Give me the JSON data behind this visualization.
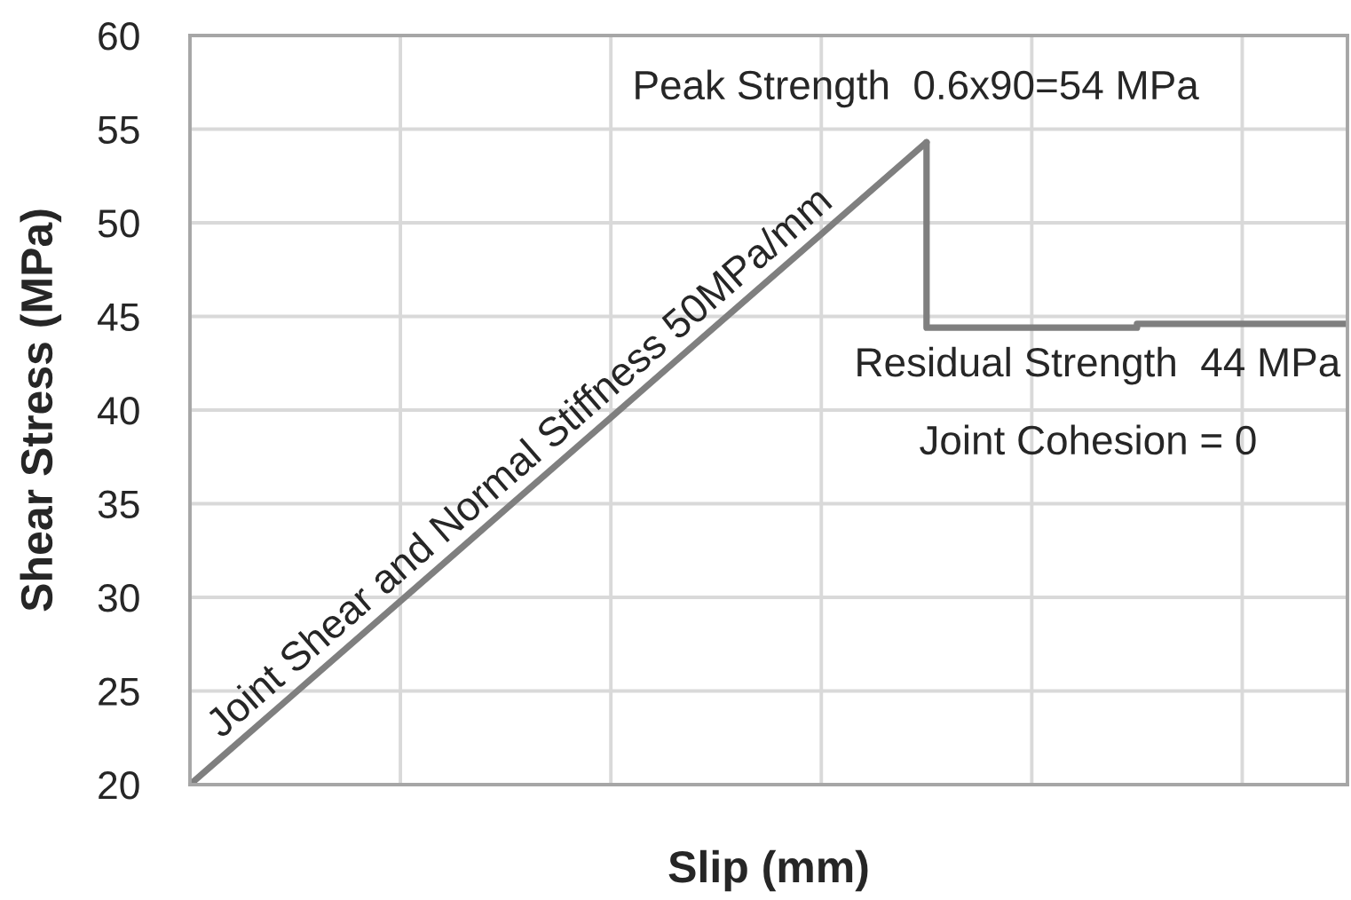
{
  "chart_data": {
    "type": "line",
    "xlabel": "Slip (mm)",
    "ylabel": "Shear Stress (MPa)",
    "categories": [
      null,
      null,
      null,
      null,
      null,
      null,
      null,
      null,
      null,
      null,
      null,
      null
    ],
    "series": [
      {
        "color": "#7f7f7f",
        "values": [
          20,
          24.9,
          29.8,
          34.7,
          39.6,
          44.5,
          49.4,
          54.3,
          null,
          null,
          null,
          null
        ]
      },
      {
        "type": "step",
        "color": "#7f7f7f",
        "values": [
          null,
          null,
          null,
          null,
          null,
          null,
          null,
          54.3,
          44.4,
          44.4,
          44.6,
          44.6
        ]
      }
    ],
    "ylim": [
      20,
      60
    ],
    "yticks": [
      20,
      25,
      30,
      35,
      40,
      45,
      50,
      55,
      60
    ],
    "grid": true,
    "tick_labels": "y",
    "marker": "none",
    "line_style": "solid",
    "annotations": [
      "Joint Shear and Normal Stiffness 50MPa/mm",
      "Peak Strength  0.6x90=54 MPa",
      "Residual Strength  44 MPa",
      "Joint Cohesion = 0"
    ]
  }
}
